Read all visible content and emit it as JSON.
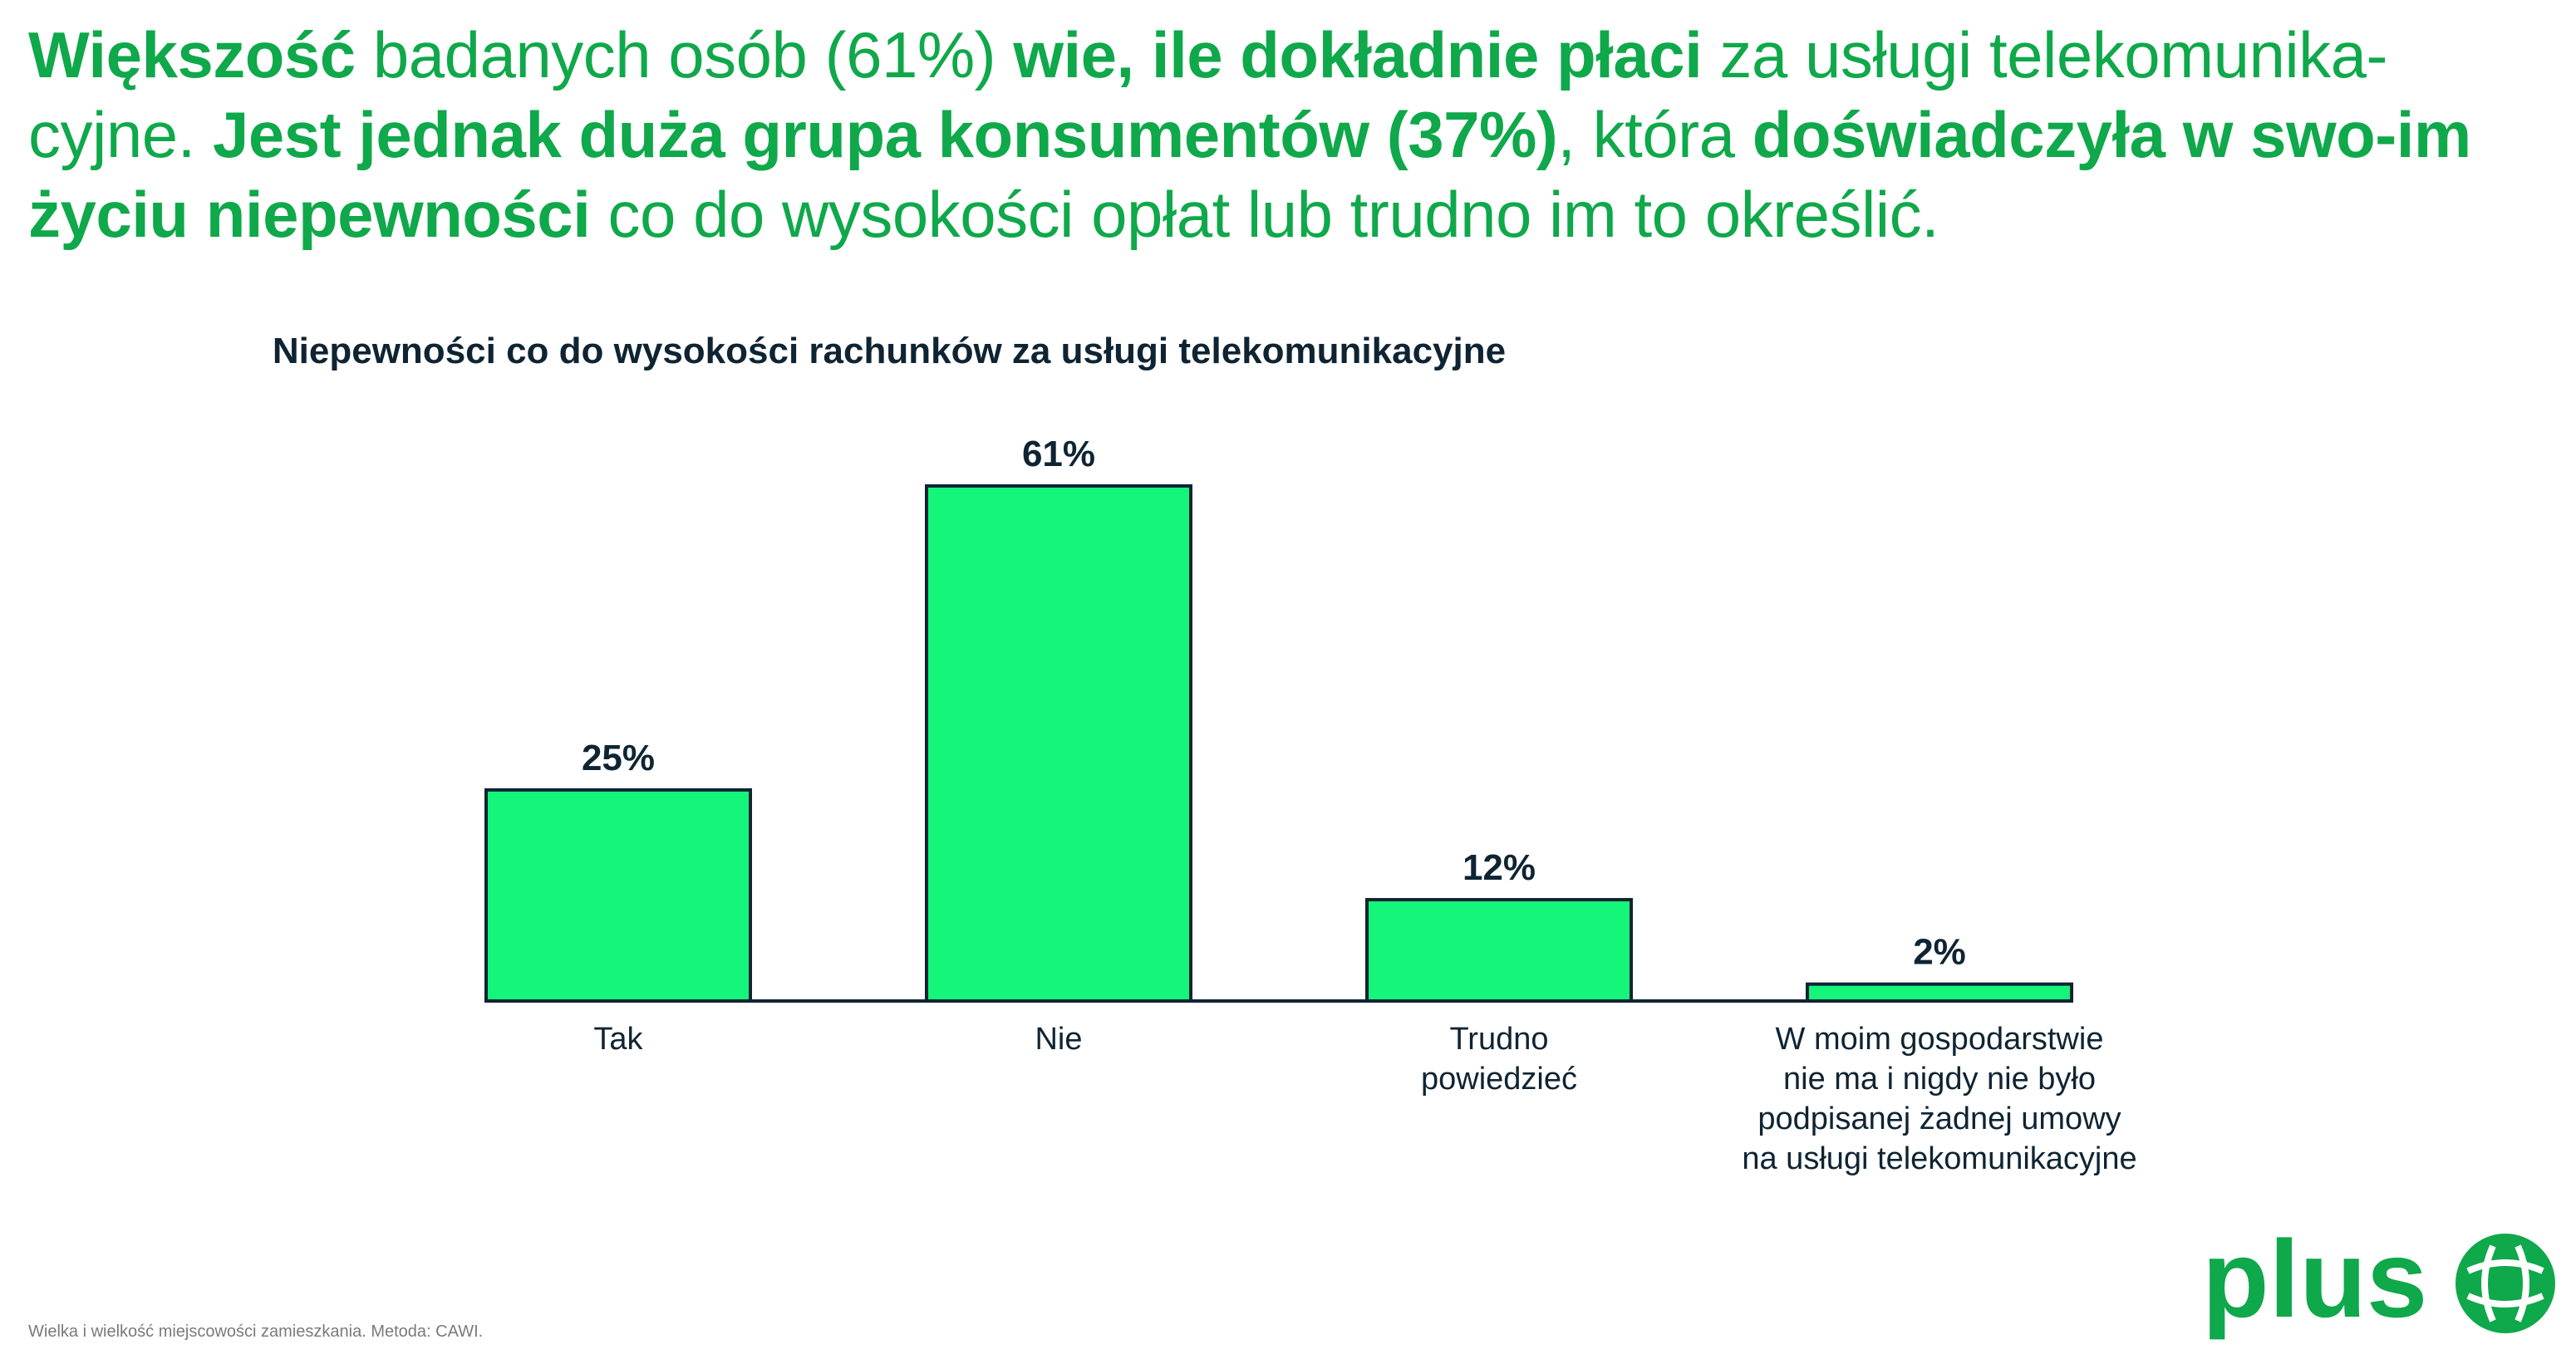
{
  "headline": {
    "parts": [
      {
        "text": "Większość",
        "bold": true
      },
      {
        "text": " badanych osób (61%) ",
        "bold": false
      },
      {
        "text": "wie, ile dokładnie płaci",
        "bold": true
      },
      {
        "text": " za usługi telekomunika-cyjne. ",
        "bold": false
      },
      {
        "text": "Jest jednak duża grupa konsumentów (37%)",
        "bold": true
      },
      {
        "text": ", która ",
        "bold": false
      },
      {
        "text": "doświadczyła w swo-im życiu niepewności",
        "bold": true
      },
      {
        "text": " co do wysokości opłat lub trudno im to określić.",
        "bold": false
      }
    ]
  },
  "chart_data": {
    "type": "bar",
    "title": "Niepewności co do wysokości rachunków za usługi telekomunikacyjne",
    "categories": [
      "Tak",
      "Nie",
      "Trudno powiedzieć",
      "W moim gospodarstwie nie ma i nigdy nie było podpisanej żadnej umowy na usługi telekomunikacyjne"
    ],
    "category_lines": [
      [
        "Tak"
      ],
      [
        "Nie"
      ],
      [
        "Trudno",
        "powiedzieć"
      ],
      [
        "W moim gospodarstwie",
        "nie ma i nigdy nie było",
        "podpisanej żadnej umowy",
        "na usługi telekomunikacyjne"
      ]
    ],
    "values": [
      25,
      61,
      12,
      2
    ],
    "value_labels": [
      "25%",
      "61%",
      "12%",
      "2%"
    ],
    "ylim": [
      0,
      61
    ],
    "grid": false,
    "bar_color": "#14f57a",
    "outline_color": "#0f2433"
  },
  "footnote": "Wielka i wielkość miejscowości zamieszkania. Metodа: CAWI.",
  "logo": {
    "text": "plus",
    "color": "#0fa84a"
  }
}
